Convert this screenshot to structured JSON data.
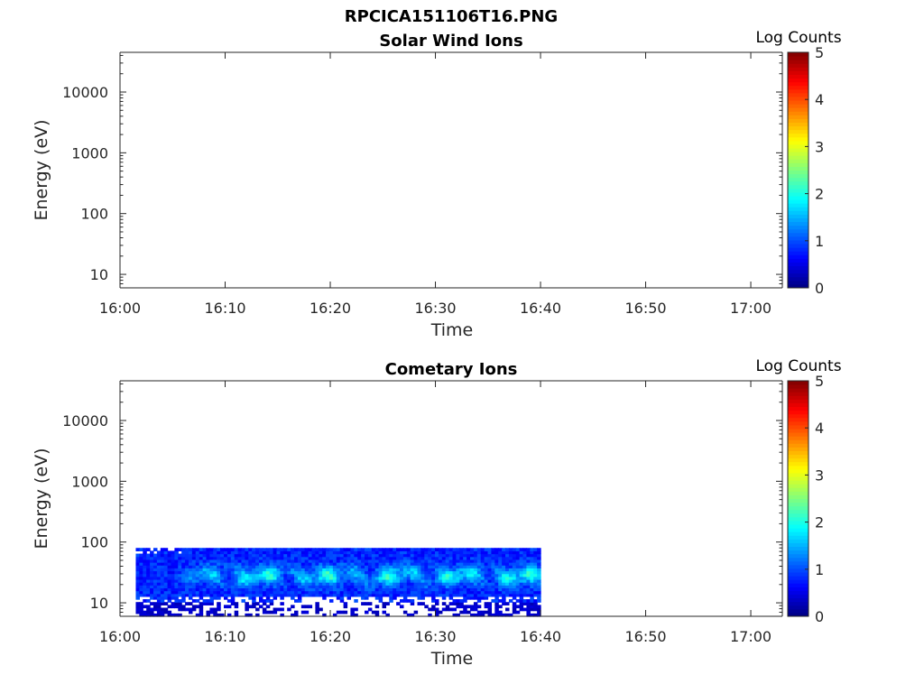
{
  "figure": {
    "title": "RPCICA151106T16.PNG"
  },
  "colormap": [
    "#00007f",
    "#0000ff",
    "#007fff",
    "#00ffff",
    "#7fff7f",
    "#ffff00",
    "#ff7f00",
    "#ff0000",
    "#7f0000"
  ],
  "chart_data": [
    {
      "type": "heatmap",
      "title": "Solar Wind Ions",
      "xlabel": "Time",
      "ylabel": "Energy (eV)",
      "x_ticks": [
        "16:00",
        "16:10",
        "16:20",
        "16:30",
        "16:40",
        "16:50",
        "17:00"
      ],
      "x_tick_minutes": [
        0,
        10,
        20,
        30,
        40,
        50,
        60
      ],
      "xlim_minutes": [
        0,
        63
      ],
      "y_scale": "log",
      "y_ticks": [
        "10",
        "100",
        "1000",
        "10000"
      ],
      "y_tick_values": [
        10,
        100,
        1000,
        10000
      ],
      "ylim": [
        6,
        45000
      ],
      "colorbar": {
        "label": "Log Counts",
        "ticks": [
          "0",
          "1",
          "2",
          "3",
          "4",
          "5"
        ],
        "range": [
          0,
          5
        ]
      },
      "data": {
        "present": false
      }
    },
    {
      "type": "heatmap",
      "title": "Cometary Ions",
      "xlabel": "Time",
      "ylabel": "Energy (eV)",
      "x_ticks": [
        "16:00",
        "16:10",
        "16:20",
        "16:30",
        "16:40",
        "16:50",
        "17:00"
      ],
      "x_tick_minutes": [
        0,
        10,
        20,
        30,
        40,
        50,
        60
      ],
      "xlim_minutes": [
        0,
        63
      ],
      "y_scale": "log",
      "y_ticks": [
        "10",
        "100",
        "1000",
        "10000"
      ],
      "y_tick_values": [
        10,
        100,
        1000,
        10000
      ],
      "ylim": [
        6,
        45000
      ],
      "colorbar": {
        "label": "Log Counts",
        "ticks": [
          "0",
          "1",
          "2",
          "3",
          "4",
          "5"
        ],
        "range": [
          0,
          5
        ]
      },
      "data": {
        "present": true,
        "time_range_minutes": [
          1.5,
          40
        ],
        "energy_range_ev": [
          6,
          80
        ],
        "peak_band_energy_ev": [
          20,
          40
        ],
        "peak_log_counts": 2.0,
        "typical_log_counts": 1.0
      }
    }
  ]
}
